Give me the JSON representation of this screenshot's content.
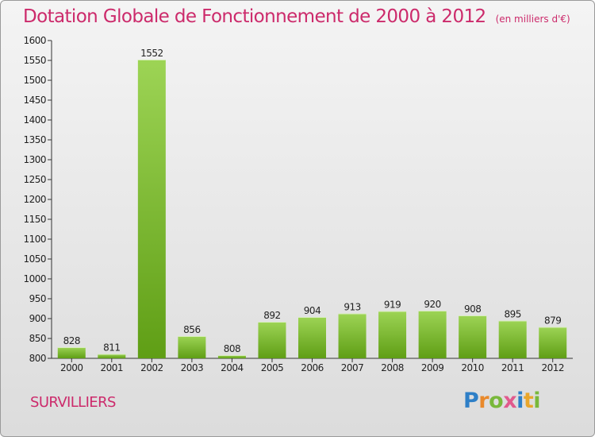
{
  "header": {
    "title": "Dotation Globale de Fonctionnement de 2000 à 2012",
    "unit": "(en milliers d'€)"
  },
  "footer": {
    "commune": "SURVILLIERS",
    "logo_text": "Proxiti"
  },
  "colors": {
    "title": "#cc2a6b",
    "bar_light": "#9dd455",
    "bar_dark": "#5f9e15"
  },
  "chart_data": {
    "type": "bar",
    "title": "Dotation Globale de Fonctionnement de 2000 à 2012",
    "subtitle": "(en milliers d'€)",
    "xlabel": "",
    "ylabel": "",
    "categories": [
      "2000",
      "2001",
      "2002",
      "2003",
      "2004",
      "2005",
      "2006",
      "2007",
      "2008",
      "2009",
      "2010",
      "2011",
      "2012"
    ],
    "values": [
      828,
      811,
      1552,
      856,
      808,
      892,
      904,
      913,
      919,
      920,
      908,
      895,
      879
    ],
    "ylim": [
      800,
      1600
    ],
    "yticks": [
      800,
      850,
      900,
      950,
      1000,
      1050,
      1100,
      1150,
      1200,
      1250,
      1300,
      1350,
      1400,
      1450,
      1500,
      1550,
      1600
    ],
    "grid": false,
    "legend": "none"
  }
}
